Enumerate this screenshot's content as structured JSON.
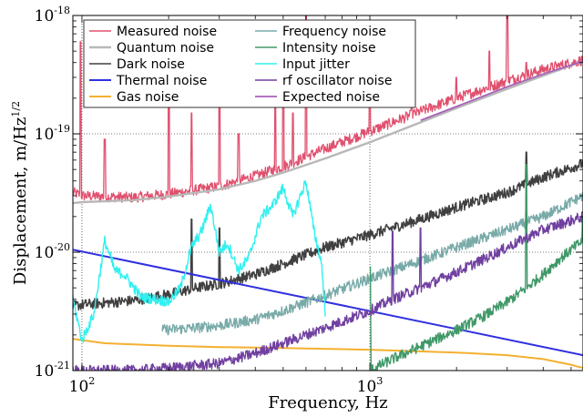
{
  "chart_data": {
    "type": "line",
    "xlabel": "Frequency, Hz",
    "ylabel_main": "Displacement, m/Hz",
    "ylabel_exp": "1/2",
    "xscale": "log",
    "yscale": "log",
    "xlim": [
      93,
      5500
    ],
    "ylim": [
      1e-21,
      1e-18
    ],
    "grid": "dotted at decades",
    "legend_placement": "top-left, two columns",
    "x_tick_labels": [
      {
        "base": "10",
        "exp": "2",
        "value": 100
      },
      {
        "base": "10",
        "exp": "3",
        "value": 1000
      }
    ],
    "y_tick_labels": [
      {
        "base": "10",
        "exp": "-21",
        "value": 1e-21
      },
      {
        "base": "10",
        "exp": "-20",
        "value": 1e-20
      },
      {
        "base": "10",
        "exp": "-19",
        "value": 1e-19
      },
      {
        "base": "10",
        "exp": "-18",
        "value": 1e-18
      }
    ],
    "series": [
      {
        "name": "Measured noise",
        "color": "#e0506e",
        "width": 1.3,
        "style": "noisy",
        "x": [
          93,
          100,
          150,
          200,
          300,
          400,
          500,
          700,
          1000,
          1500,
          2000,
          3000,
          4000,
          5500
        ],
        "y": [
          3.2e-20,
          3e-20,
          2.9e-20,
          3.1e-20,
          3.6e-20,
          4.4e-20,
          5.3e-20,
          7.5e-20,
          1.05e-19,
          1.55e-19,
          2e-19,
          2.8e-19,
          3.5e-19,
          4.2e-19
        ],
        "spikes": [
          [
            99,
            6e-19
          ],
          [
            120,
            9e-20
          ],
          [
            200,
            8e-19
          ],
          [
            240,
            1.5e-19
          ],
          [
            300,
            6e-19
          ],
          [
            350,
            1e-19
          ],
          [
            470,
            2.6e-19
          ],
          [
            500,
            9e-19
          ],
          [
            540,
            1.5e-19
          ],
          [
            600,
            1e-18
          ],
          [
            1000,
            2.8e-19
          ],
          [
            1400,
            2.3e-19
          ],
          [
            2000,
            3e-19
          ],
          [
            2600,
            5e-19
          ],
          [
            3000,
            1e-18
          ],
          [
            3500,
            4e-19
          ]
        ]
      },
      {
        "name": "Quantum noise",
        "color": "#b8b8b8",
        "width": 2.4,
        "style": "smooth",
        "x": [
          93,
          100,
          150,
          200,
          300,
          400,
          500,
          700,
          1000,
          1500,
          2000,
          3000,
          4000,
          5500
        ],
        "y": [
          2.6e-20,
          2.65e-20,
          2.75e-20,
          2.95e-20,
          3.4e-20,
          4e-20,
          4.7e-20,
          6.2e-20,
          8.5e-20,
          1.25e-19,
          1.65e-19,
          2.4e-19,
          3.1e-19,
          4.1e-19
        ]
      },
      {
        "name": "Dark noise",
        "color": "#404040",
        "width": 1.5,
        "style": "noisy",
        "x": [
          93,
          100,
          150,
          200,
          250,
          300,
          400,
          500,
          700,
          1000,
          1500,
          2000,
          3000,
          4000,
          5500
        ],
        "y": [
          3.5e-21,
          3.6e-21,
          3.9e-21,
          4.4e-21,
          5e-21,
          5.4e-21,
          6.5e-21,
          8e-21,
          1.1e-20,
          1.4e-20,
          1.9e-20,
          2.4e-20,
          3.2e-20,
          4.3e-20,
          5.6e-20
        ],
        "spikes": [
          [
            240,
            1.9e-20
          ],
          [
            300,
            1.6e-20
          ],
          [
            3500,
            7e-20
          ]
        ]
      },
      {
        "name": "Thermal noise",
        "color": "#3030e0",
        "width": 2.0,
        "style": "smooth",
        "x": [
          93,
          5500
        ],
        "y": [
          1.05e-20,
          1.35e-21
        ]
      },
      {
        "name": "Gas noise",
        "color": "#f4b030",
        "width": 2.0,
        "style": "smooth",
        "x": [
          93,
          120,
          200,
          300,
          500,
          1000,
          2000,
          3000,
          4000,
          5000,
          5500
        ],
        "y": [
          1.85e-21,
          1.7e-21,
          1.62e-21,
          1.58e-21,
          1.55e-21,
          1.5e-21,
          1.42e-21,
          1.35e-21,
          1.25e-21,
          1.12e-21,
          1.05e-21
        ]
      },
      {
        "name": "Frequency noise",
        "color": "#78aaa8",
        "width": 1.4,
        "style": "noisy",
        "x": [
          190,
          250,
          300,
          400,
          500,
          700,
          1000,
          1500,
          2000,
          3000,
          4000,
          5500
        ],
        "y": [
          2.2e-21,
          2.3e-21,
          2.4e-21,
          2.7e-21,
          3.2e-21,
          4.3e-21,
          6e-21,
          8.5e-21,
          1.1e-20,
          1.55e-20,
          2e-20,
          3e-20
        ],
        "spikes": [
          [
            3500,
            2.8e-20
          ]
        ]
      },
      {
        "name": "Intensity noise",
        "color": "#409868",
        "width": 1.4,
        "style": "noisy",
        "x": [
          1000,
          1200,
          1500,
          2000,
          2500,
          3000,
          3500,
          4000,
          4500,
          5000,
          5500
        ],
        "y": [
          1e-21,
          1.25e-21,
          1.6e-21,
          2.2e-21,
          2.9e-21,
          3.8e-21,
          5e-21,
          6.5e-21,
          8.5e-21,
          1.05e-20,
          1.25e-20
        ],
        "spikes": [
          [
            1000,
            7.5e-21
          ],
          [
            3500,
            5.5e-20
          ],
          [
            5500,
            2e-20
          ]
        ]
      },
      {
        "name": "Input jitter",
        "color": "#30f0f0",
        "width": 1.4,
        "style": "noisy",
        "x": [
          93,
          100,
          110,
          120,
          130,
          140,
          160,
          180,
          200,
          220,
          240,
          260,
          280,
          300,
          320,
          350,
          380,
          420,
          460,
          500,
          540,
          600,
          640,
          680,
          700
        ],
        "y": [
          4e-21,
          1.8e-21,
          3e-21,
          1.25e-20,
          7e-21,
          6.5e-21,
          4.2e-21,
          4e-21,
          3.8e-21,
          5e-21,
          1.1e-20,
          1.5e-20,
          2.5e-20,
          1e-20,
          1.2e-20,
          7e-21,
          9e-21,
          2e-20,
          2.5e-20,
          3.5e-20,
          2e-20,
          4e-20,
          1.5e-20,
          8e-21,
          3e-21
        ]
      },
      {
        "name": "rf oscillator noise",
        "color": "#7040a0",
        "width": 1.4,
        "style": "noisy",
        "x": [
          93,
          150,
          200,
          300,
          400,
          500,
          700,
          1000,
          1200,
          1500,
          2000,
          2500,
          3000,
          4000,
          5500
        ],
        "y": [
          1e-21,
          1e-21,
          1.05e-21,
          1.15e-21,
          1.4e-21,
          1.7e-21,
          2.3e-21,
          3.2e-21,
          4e-21,
          5e-21,
          6.8e-21,
          8.8e-21,
          1.1e-20,
          1.55e-20,
          2e-20
        ],
        "spikes": [
          [
            1200,
            1.5e-20
          ],
          [
            1500,
            1.6e-20
          ]
        ]
      },
      {
        "name": "Expected noise",
        "color": "#a860b8",
        "width": 1.8,
        "style": "smooth",
        "x": [
          1500,
          2000,
          3000,
          4000,
          5500
        ],
        "y": [
          1.3e-19,
          1.7e-19,
          2.5e-19,
          3.2e-19,
          4.1e-19
        ]
      }
    ]
  }
}
